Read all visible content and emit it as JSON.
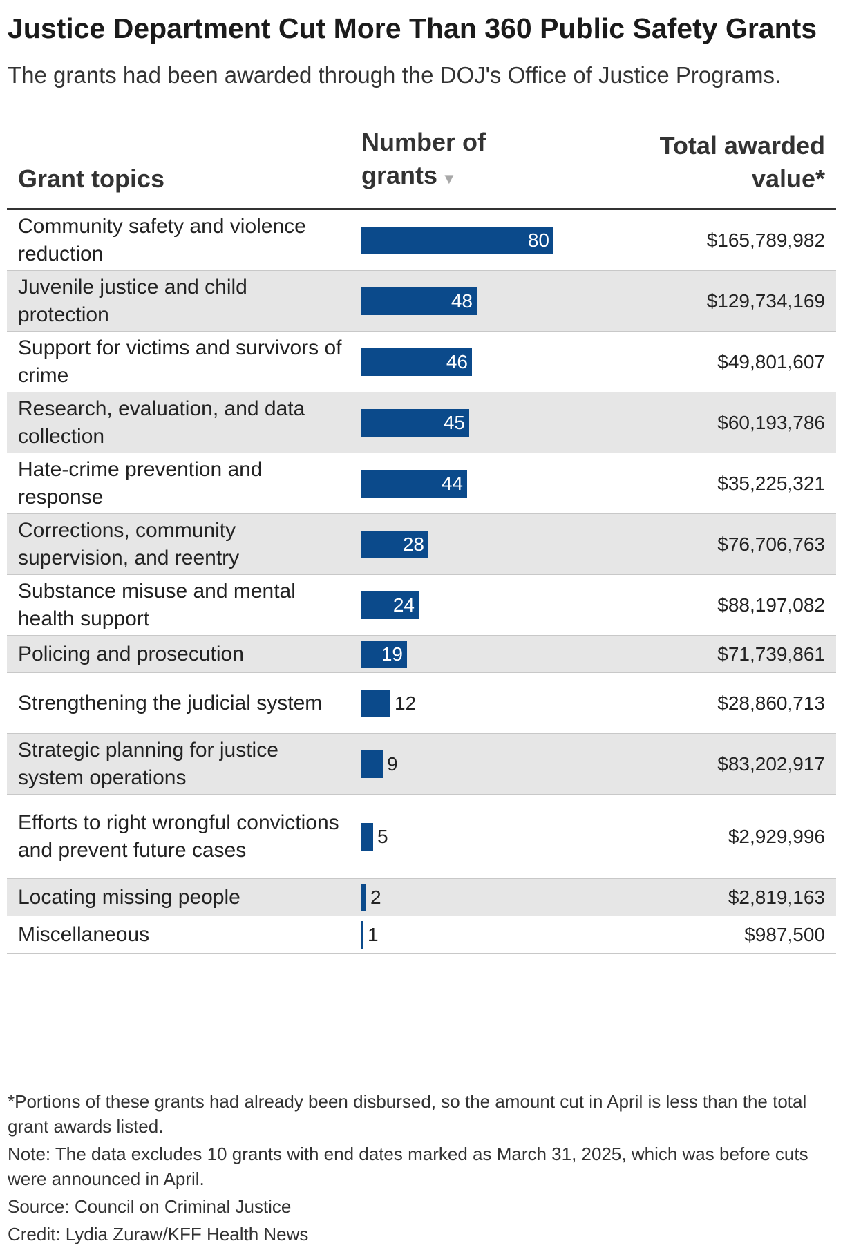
{
  "title": "Justice Department Cut More Than 360 Public Safety Grants",
  "subtitle": "The grants had been awarded through the DOJ's Office of Justice Programs.",
  "columns": {
    "topic": "Grant topics",
    "count_line1": "Number of",
    "count_line2": "grants",
    "sort_icon": "sort-descending-icon",
    "value_line1": "Total awarded",
    "value_line2": "value*"
  },
  "colors": {
    "bar": "#0b4a8b",
    "row_alt": "#e6e6e6"
  },
  "chart_data": {
    "type": "table",
    "columns": [
      "Grant topics",
      "Number of grants",
      "Total awarded value*"
    ],
    "max_count": 80,
    "rows": [
      {
        "topic": "Community safety and violence reduction",
        "count": 80,
        "value": "$165,789,982"
      },
      {
        "topic": "Juvenile justice and child protection",
        "count": 48,
        "value": "$129,734,169"
      },
      {
        "topic": "Support for victims and survivors of crime",
        "count": 46,
        "value": "$49,801,607"
      },
      {
        "topic": "Research, evaluation, and data collection",
        "count": 45,
        "value": "$60,193,786"
      },
      {
        "topic": "Hate-crime prevention and response",
        "count": 44,
        "value": "$35,225,321"
      },
      {
        "topic": "Corrections, community supervision, and reentry",
        "count": 28,
        "value": "$76,706,763"
      },
      {
        "topic": "Substance misuse and mental health support",
        "count": 24,
        "value": "$88,197,082"
      },
      {
        "topic": "Policing and prosecution",
        "count": 19,
        "value": "$71,739,861"
      },
      {
        "topic": "Strengthening the judicial system",
        "count": 12,
        "value": "$28,860,713"
      },
      {
        "topic": "Strategic planning for justice system operations",
        "count": 9,
        "value": "$83,202,917"
      },
      {
        "topic": "Efforts to right wrongful convictions and prevent future cases",
        "count": 5,
        "value": "$2,929,996"
      },
      {
        "topic": "Locating missing people",
        "count": 2,
        "value": "$2,819,163"
      },
      {
        "topic": "Miscellaneous",
        "count": 1,
        "value": "$987,500"
      }
    ]
  },
  "notes": {
    "footnote": "*Portions of these grants had already been disbursed, so the amount cut in April is less than the total grant awards listed.",
    "note": "Note: The data excludes 10 grants with end dates marked as March 31, 2025, which was before cuts were announced in April.",
    "source": "Source: Council on Criminal Justice",
    "credit": "Credit: Lydia Zuraw/KFF Health News"
  }
}
